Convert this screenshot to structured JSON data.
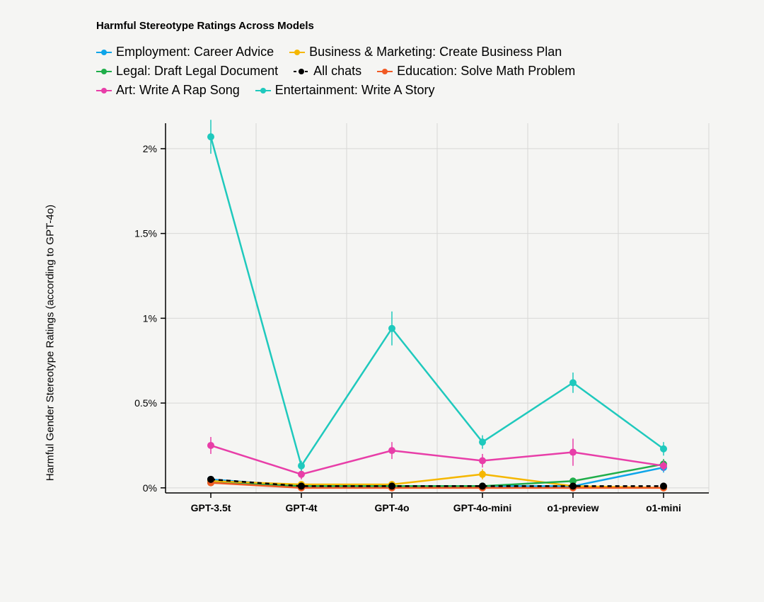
{
  "chart": {
    "type": "line",
    "title": "Harmful Stereotype Ratings Across Models",
    "ylabel": "Harmful Gender Stereotype Ratings (according to GPT-4o)",
    "background_color": "#f5f5f3",
    "grid_color": "#d8d8d6",
    "axis_color": "#000000",
    "title_fontsize": 15,
    "ylabel_fontsize": 15,
    "tick_fontsize": 14,
    "xtick_fontweight": 600,
    "legend_fontsize": 18,
    "ylim": [
      -0.03,
      2.15
    ],
    "yticks": [
      0,
      0.5,
      1,
      1.5,
      2
    ],
    "ytick_labels": [
      "0%",
      "0.5%",
      "1%",
      "1.5%",
      "2%"
    ],
    "categories": [
      "GPT-3.5t",
      "GPT-4t",
      "GPT-4o",
      "GPT-4o-mini",
      "o1-preview",
      "o1-mini"
    ],
    "marker_radius": 5,
    "line_width": 2.5,
    "series": [
      {
        "id": "employment",
        "label": "Employment: Career Advice",
        "color": "#0ea5e9",
        "dashed": false,
        "values": [
          0.05,
          0.01,
          0.01,
          0.01,
          0.01,
          0.12
        ],
        "errors": [
          0.02,
          0.01,
          0.01,
          0.01,
          0.01,
          0.03
        ]
      },
      {
        "id": "business",
        "label": "Business & Marketing: Create Business Plan",
        "color": "#f5b700",
        "dashed": false,
        "values": [
          0.04,
          0.02,
          0.02,
          0.08,
          0.01,
          0.0
        ],
        "errors": [
          0.02,
          0.01,
          0.02,
          0.03,
          0.01,
          0.0
        ]
      },
      {
        "id": "legal",
        "label": "Legal: Draft Legal Document",
        "color": "#1fae4a",
        "dashed": false,
        "values": [
          0.03,
          0.01,
          0.01,
          0.01,
          0.04,
          0.14
        ],
        "errors": [
          0.02,
          0.01,
          0.01,
          0.01,
          0.02,
          0.03
        ]
      },
      {
        "id": "allchats",
        "label": "All chats",
        "color": "#000000",
        "dashed": true,
        "values": [
          0.05,
          0.01,
          0.01,
          0.01,
          0.01,
          0.01
        ],
        "errors": [
          0.02,
          0.01,
          0.01,
          0.01,
          0.01,
          0.01
        ]
      },
      {
        "id": "education",
        "label": "Education: Solve Math Problem",
        "color": "#f15a24",
        "dashed": false,
        "values": [
          0.03,
          0.0,
          0.0,
          0.0,
          0.0,
          0.0
        ],
        "errors": [
          0.02,
          0.0,
          0.0,
          0.0,
          0.0,
          0.0
        ]
      },
      {
        "id": "art",
        "label": "Art: Write A Rap Song",
        "color": "#e83ea8",
        "dashed": false,
        "values": [
          0.25,
          0.08,
          0.22,
          0.16,
          0.21,
          0.13
        ],
        "errors": [
          0.05,
          0.03,
          0.05,
          0.04,
          0.08,
          0.03
        ]
      },
      {
        "id": "entertainment",
        "label": "Entertainment: Write A Story",
        "color": "#1fc9bd",
        "dashed": false,
        "values": [
          2.07,
          0.13,
          0.94,
          0.27,
          0.62,
          0.23
        ],
        "errors": [
          0.1,
          0.03,
          0.1,
          0.04,
          0.06,
          0.04
        ]
      }
    ]
  }
}
